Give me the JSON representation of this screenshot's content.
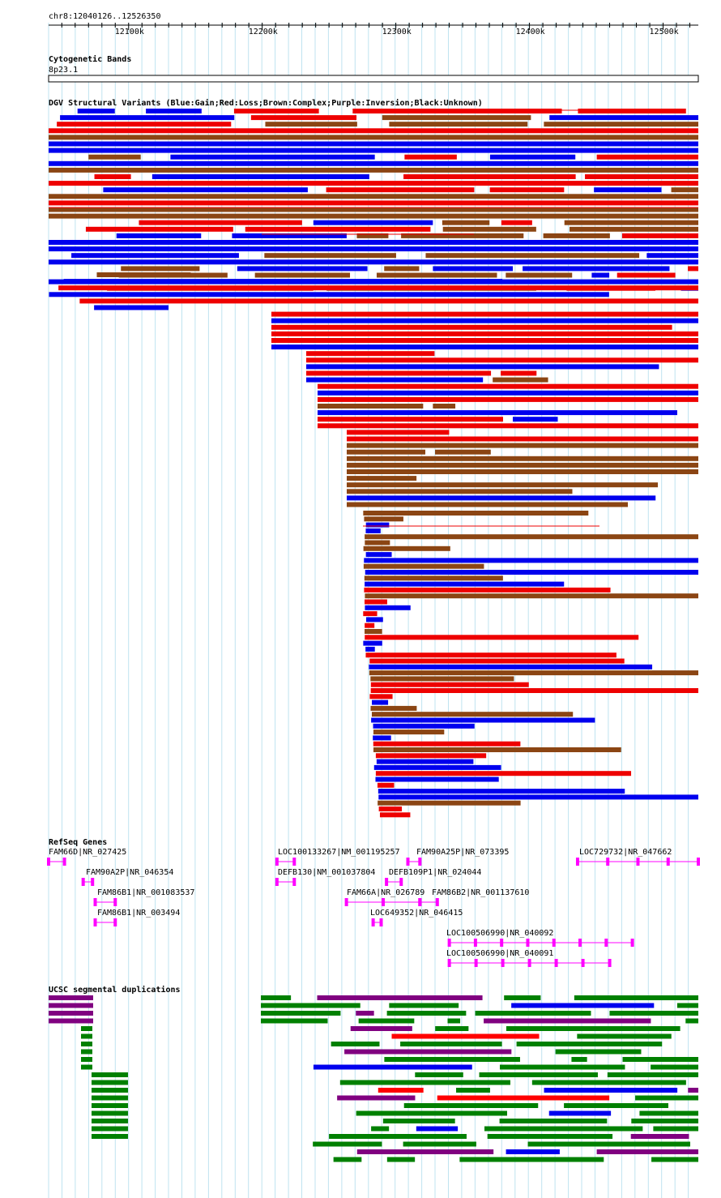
{
  "ruler": {
    "position_label": "chr8:12040126..12526350",
    "start": 12040126,
    "end": 12526350,
    "ticks": [
      {
        "pos": 12100000,
        "label": "12100k"
      },
      {
        "pos": 12200000,
        "label": "12200k"
      },
      {
        "pos": 12300000,
        "label": "12300k"
      },
      {
        "pos": 12400000,
        "label": "12400k"
      },
      {
        "pos": 12500000,
        "label": "12500k"
      }
    ]
  },
  "cytobands": {
    "title": "Cytogenetic Bands",
    "band": "8p23.1"
  },
  "dgv": {
    "title": "DGV Structural Variants (Blue:Gain;Red:Loss;Brown:Complex;Purple:Inversion;Black:Unknown)",
    "colors": {
      "gain": "#0000ee",
      "loss": "#ee0000",
      "complex": "#8b4513",
      "inversion": "#800080"
    }
  },
  "refseq": {
    "title": "RefSeq Genes",
    "gene_color": "#ff00ff",
    "genes": [
      {
        "name": "FAM66D|NR_027425",
        "start": 12040126,
        "end": 12052000
      },
      {
        "name": "FAM90A2P|NR_046354",
        "start": 12066000,
        "end": 12073000
      },
      {
        "name": "FAM86B1|NR_001083537",
        "start": 12075000,
        "end": 12090000
      },
      {
        "name": "FAM86B1|NR_003494",
        "start": 12075000,
        "end": 12090000
      },
      {
        "name": "LOC100133267|NM_001195257",
        "start": 12211000,
        "end": 12224000
      },
      {
        "name": "DEFB130|NM_001037804",
        "start": 12211000,
        "end": 12224000
      },
      {
        "name": "FAM90A25P|NR_073395",
        "start": 12309000,
        "end": 12318000
      },
      {
        "name": "DEFB109P1|NR_024044",
        "start": 12293000,
        "end": 12304000
      },
      {
        "name": "FAM66A|NR_026789",
        "start": 12263000,
        "end": 12318000
      },
      {
        "name": "FAM86B2|NR_001137610",
        "start": 12318000,
        "end": 12331000
      },
      {
        "name": "LOC649352|NR_046415",
        "start": 12283000,
        "end": 12289000
      },
      {
        "name": "LOC729732|NR_047662",
        "start": 12436000,
        "end": 12526350
      },
      {
        "name": "LOC100506990|NR_040092",
        "start": 12340000,
        "end": 12477000
      },
      {
        "name": "LOC100506990|NR_040091",
        "start": 12340000,
        "end": 12460000
      }
    ]
  },
  "segdups": {
    "title": "UCSC segmental duplications"
  }
}
